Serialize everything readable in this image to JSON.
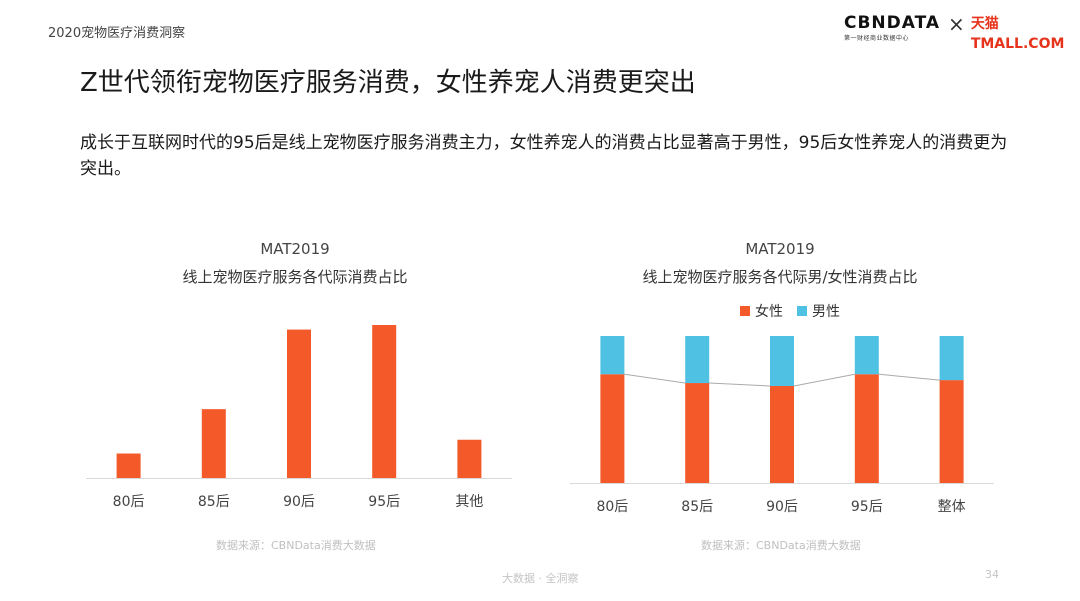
{
  "header": {
    "report_title": "2020宠物医疗消费洞察"
  },
  "logo": {
    "cbn_main": "CBNDATA",
    "cbn_sub": "第一财经商业数据中心",
    "x_mark": "×",
    "tmall": "天猫 TMALL.COM"
  },
  "page_title": "Z世代领衔宠物医疗服务消费，女性养宠人消费更突出",
  "subtitle": "成长于互联网时代的95后是线上宠物医疗服务消费主力，女性养宠人的消费占比显著高于男性，95后女性养宠人的消费更为突出。",
  "colors": {
    "orange": "#f4592a",
    "blue": "#4fc1e3",
    "axis": "#d9d9d9",
    "line": "#aaaaaa"
  },
  "chart_data": [
    {
      "type": "bar",
      "title": "线上宠物医疗服务各代际消费占比",
      "subtitle": "MAT2019",
      "categories": [
        "80后",
        "85后",
        "90后",
        "95后",
        "其他"
      ],
      "values": [
        16,
        45,
        97,
        100,
        25
      ],
      "ylim": [
        0,
        100
      ],
      "yaxis_shown": false,
      "grid": false
    },
    {
      "type": "bar",
      "stacked": true,
      "title": "线上宠物医疗服务各代际男/女性消费占比",
      "subtitle": "MAT2019",
      "categories": [
        "80后",
        "85后",
        "90后",
        "95后",
        "整体"
      ],
      "series": [
        {
          "name": "女性",
          "values": [
            74,
            68,
            66,
            74,
            70
          ]
        },
        {
          "name": "男性",
          "values": [
            26,
            32,
            34,
            26,
            30
          ]
        }
      ],
      "ylim": [
        0,
        100
      ],
      "legend": "top-center",
      "connector_line": true,
      "grid": false
    }
  ],
  "footnotes": {
    "source_left": "数据来源：CBNData消费大数据",
    "source_right": "数据来源：CBNData消费大数据",
    "footer": "大数据 · 全洞察",
    "page_number": "34"
  }
}
